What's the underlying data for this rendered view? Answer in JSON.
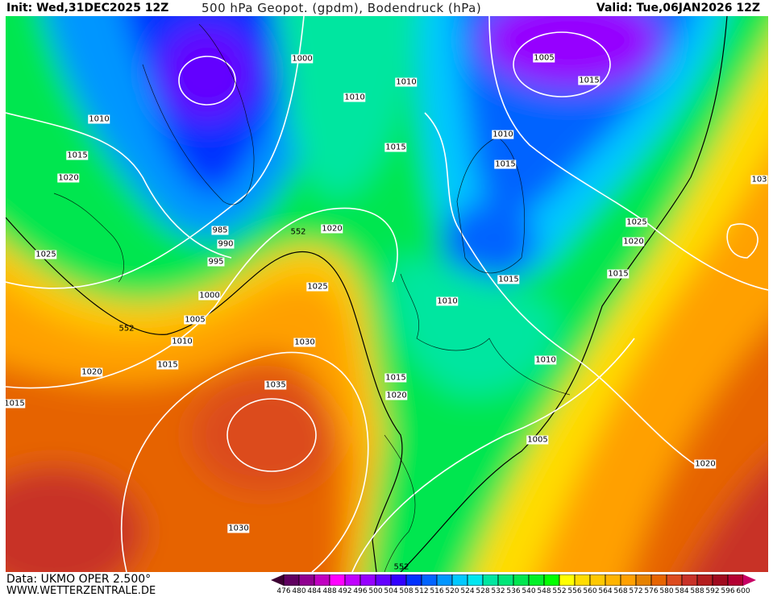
{
  "header": {
    "init": "Init: Wed,31DEC2025 12Z",
    "title": "500 hPa Geopot. (gpdm), Bodendruck (hPa)",
    "valid": "Valid: Tue,06JAN2026 12Z"
  },
  "footer": {
    "data_source": "Data: UKMO OPER 2.500°",
    "website": "WWW.WETTERZENTRALE.DE"
  },
  "legend": {
    "labels": [
      "476",
      "480",
      "484",
      "488",
      "492",
      "496",
      "500",
      "504",
      "508",
      "512",
      "516",
      "520",
      "524",
      "528",
      "532",
      "536",
      "540",
      "548",
      "552",
      "556",
      "560",
      "564",
      "568",
      "572",
      "576",
      "580",
      "584",
      "588",
      "592",
      "596",
      "600"
    ],
    "colors": [
      "#600060",
      "#900090",
      "#c000c0",
      "#ff00ff",
      "#c000ff",
      "#9600ff",
      "#6400ff",
      "#3200ff",
      "#0032ff",
      "#0064ff",
      "#0096ff",
      "#00c8ff",
      "#00e6f0",
      "#00e6a0",
      "#00e678",
      "#00e650",
      "#00f028",
      "#00ff00",
      "#ffff00",
      "#ffdc00",
      "#ffc800",
      "#ffb400",
      "#ffa000",
      "#e68200",
      "#e66400",
      "#dc4b1e",
      "#c83228",
      "#b41e1e",
      "#a00a1e",
      "#b40032"
    ],
    "low_arrow_color": "#3c0032",
    "high_arrow_color": "#c80064"
  },
  "map": {
    "isobar_labels": [
      "1000",
      "1005",
      "1010",
      "1010",
      "1015",
      "1010",
      "1010",
      "1015",
      "1015",
      "1015",
      "1020",
      "985",
      "990",
      "1020",
      "1025",
      "1020",
      "995",
      "1025",
      "1015",
      "1015",
      "1025",
      "1000",
      "1010",
      "1005",
      "1010",
      "1030",
      "1015",
      "1010",
      "1020",
      "1015",
      "1035",
      "1020",
      "1015",
      "1005",
      "1020",
      "1030",
      "103"
    ],
    "height_labels": [
      "552",
      "552",
      "552"
    ]
  }
}
